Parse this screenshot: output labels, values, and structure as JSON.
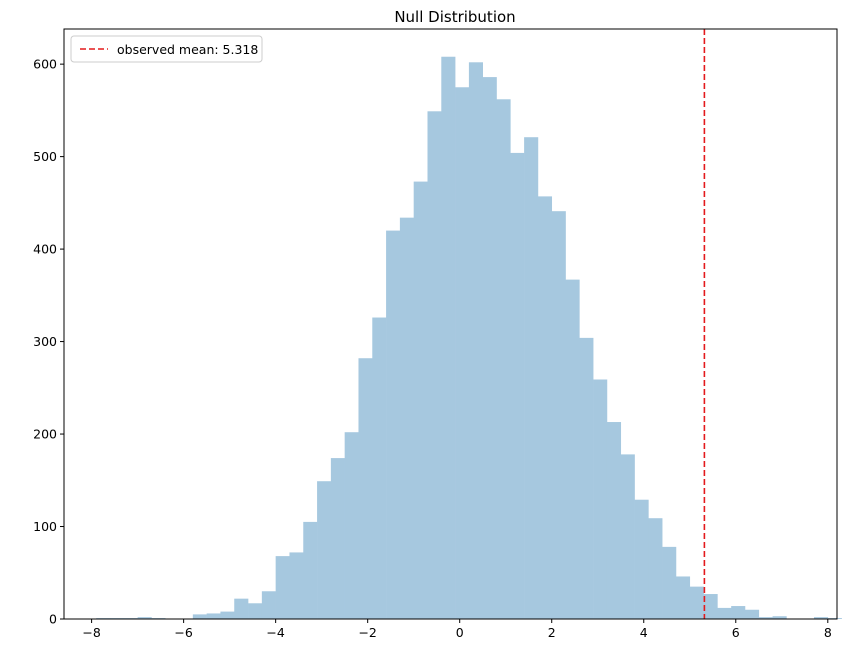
{
  "chart_data": {
    "type": "bar",
    "title": "Null Distribution",
    "xlabel": "",
    "ylabel": "",
    "xlim": [
      -8.6,
      8.2
    ],
    "ylim": [
      0,
      638
    ],
    "bin_start": -7.9,
    "bin_width": 0.3,
    "counts": [
      1,
      1,
      1,
      2,
      1,
      0,
      0,
      5,
      6,
      8,
      22,
      17,
      30,
      68,
      72,
      105,
      149,
      174,
      202,
      282,
      326,
      420,
      434,
      473,
      549,
      608,
      575,
      602,
      586,
      562,
      504,
      521,
      457,
      441,
      367,
      304,
      259,
      213,
      178,
      129,
      109,
      78,
      46,
      35,
      27,
      12,
      14,
      10,
      2,
      3,
      0,
      0,
      2,
      1
    ],
    "bar_color": "#a6c8df",
    "xticks": [
      -8,
      -6,
      -4,
      -2,
      0,
      2,
      4,
      6,
      8
    ],
    "yticks": [
      0,
      100,
      200,
      300,
      400,
      500,
      600
    ],
    "vline": {
      "x": 5.318,
      "color": "#e31a1c",
      "style": "dashed"
    },
    "legend": {
      "label": "observed mean: 5.318",
      "placement": "top-left"
    },
    "grid": false
  }
}
